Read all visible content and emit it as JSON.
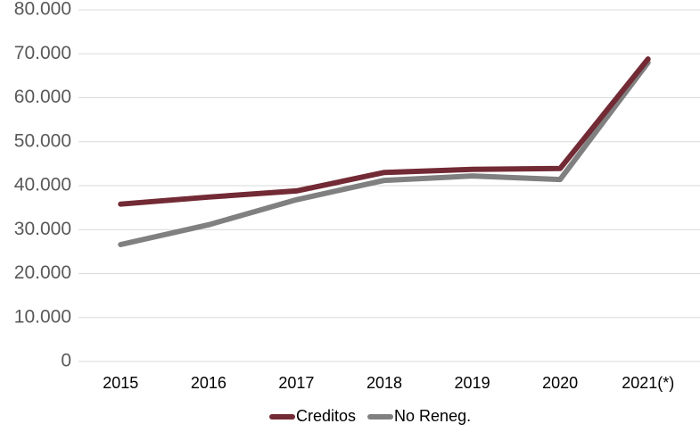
{
  "chart_data": {
    "type": "line",
    "categories": [
      "2015",
      "2016",
      "2017",
      "2018",
      "2019",
      "2020",
      "2021(*)"
    ],
    "series": [
      {
        "name": "Creditos",
        "color": "#722a34",
        "values": [
          35800,
          37400,
          38800,
          43000,
          43700,
          43900,
          68800
        ]
      },
      {
        "name": "No Reneg.",
        "color": "#808080",
        "values": [
          26600,
          31100,
          36800,
          41200,
          42200,
          41400,
          68000
        ]
      }
    ],
    "ylim": [
      0,
      80000
    ],
    "yticks": [
      0,
      {
        "value": 10000,
        "label": "10.000"
      },
      {
        "value": 20000,
        "label": "20.000"
      },
      {
        "value": 30000,
        "label": "30.000"
      },
      {
        "value": 40000,
        "label": "40.000"
      },
      {
        "value": 50000,
        "label": "50.000"
      },
      {
        "value": 60000,
        "label": "60.000"
      },
      {
        "value": 70000,
        "label": "70.000"
      },
      {
        "value": 80000,
        "label": "80.000"
      }
    ],
    "grid": true,
    "legend": "bottom"
  }
}
